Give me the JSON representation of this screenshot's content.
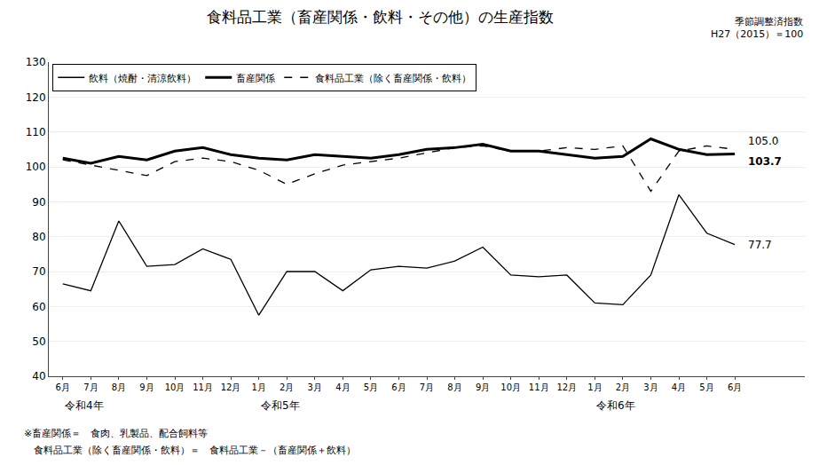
{
  "chart_data": {
    "type": "line",
    "title": "食料品工業（畜産関係・飲料・その他）の生産指数",
    "subtitle": [
      "季節調整済指数",
      "H27（2015）＝100"
    ],
    "categories": [
      "6月",
      "7月",
      "8月",
      "9月",
      "10月",
      "11月",
      "12月",
      "1月",
      "2月",
      "3月",
      "4月",
      "5月",
      "6月",
      "7月",
      "8月",
      "9月",
      "10月",
      "11月",
      "12月",
      "1月",
      "2月",
      "3月",
      "4月",
      "5月",
      "6月"
    ],
    "series": [
      {
        "name": "飲料（焼酎・清涼飲料）",
        "color": "#000000",
        "line_style": "solid",
        "values": [
          66.5,
          64.5,
          84.5,
          71.5,
          72.0,
          76.5,
          73.5,
          57.5,
          70.0,
          70.0,
          64.5,
          70.5,
          71.5,
          71.0,
          73.0,
          77.0,
          69.0,
          68.5,
          69.0,
          61.0,
          60.5,
          69.0,
          92.0,
          81.0,
          77.7
        ]
      },
      {
        "name": "畜産関係",
        "color": "#000000",
        "line_style": "bold",
        "values": [
          102.5,
          101.0,
          103.0,
          102.0,
          104.5,
          105.5,
          103.5,
          102.5,
          102.0,
          103.5,
          103.0,
          102.5,
          103.5,
          105.0,
          105.5,
          106.5,
          104.5,
          104.5,
          103.5,
          102.5,
          103.0,
          108.0,
          105.0,
          103.5,
          103.7
        ]
      },
      {
        "name": "食料品工業（除く畜産関係・飲料）",
        "color": "#000000",
        "line_style": "dashed",
        "values": [
          102.0,
          100.5,
          99.0,
          97.5,
          101.5,
          102.5,
          101.5,
          99.0,
          95.0,
          98.0,
          100.5,
          101.5,
          102.5,
          104.0,
          105.5,
          106.0,
          104.5,
          104.5,
          105.5,
          105.0,
          106.0,
          93.0,
          104.5,
          106.0,
          105.0
        ]
      }
    ],
    "annotations": [
      {
        "text": "103.7",
        "series": "畜産関係"
      },
      {
        "text": "105.0",
        "series": "食料品工業（除く畜産関係・飲料）"
      },
      {
        "text": "77.7",
        "series": "飲料（焼酎・清涼飲料）"
      },
      {
        "text": "令和4年",
        "index": 0
      },
      {
        "text": "令和5年",
        "index": 7
      },
      {
        "text": "令和6年",
        "index": 19
      }
    ],
    "footnotes": [
      "※畜産関係＝　食肉、乳製品、配合飼料等",
      "　食料品工業（除く畜産関係・飲料）＝　食料品工業－（畜産関係＋飲料）"
    ],
    "ylim": [
      40,
      130
    ],
    "yticks": [
      40,
      50,
      60,
      70,
      80,
      90,
      100,
      110,
      120,
      130
    ],
    "grid": true,
    "legend": "upper left"
  }
}
